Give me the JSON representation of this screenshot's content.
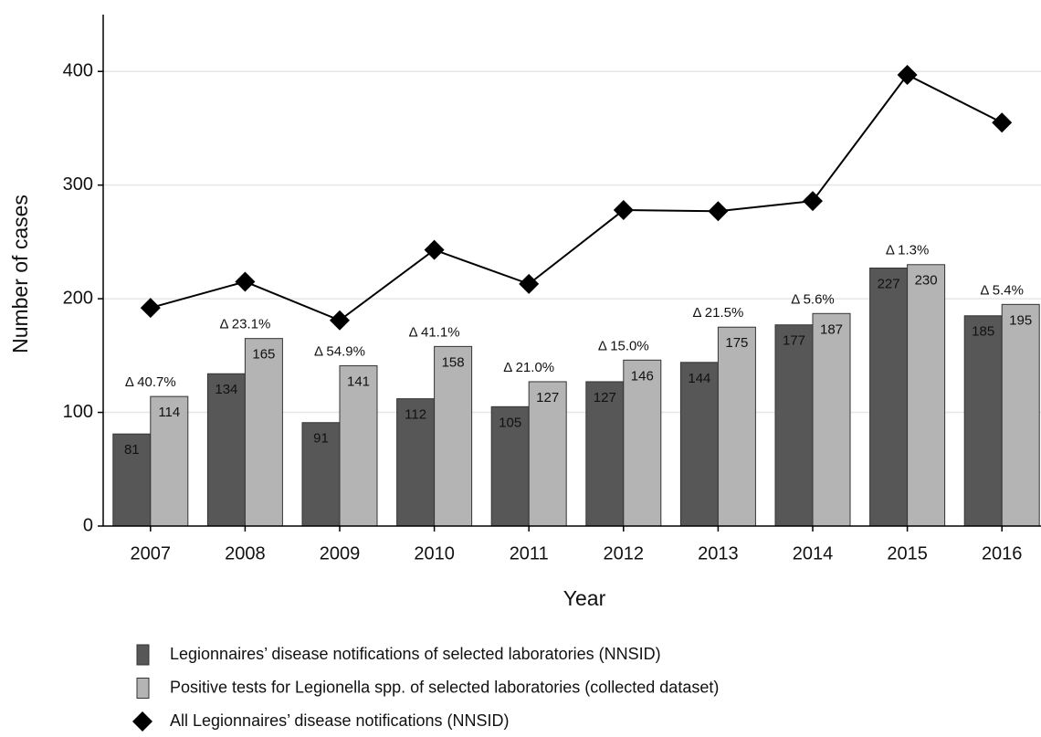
{
  "chart_data": {
    "type": "bar",
    "x_label": "Year",
    "y_label": "Number of cases",
    "categories": [
      "2007",
      "2008",
      "2009",
      "2010",
      "2011",
      "2012",
      "2013",
      "2014",
      "2015",
      "2016"
    ],
    "series": [
      {
        "name": "Legionnaires’ disease notifications of selected laboratories (NNSID)",
        "color": "#575757",
        "values": [
          81,
          134,
          91,
          112,
          105,
          127,
          144,
          177,
          227,
          185
        ]
      },
      {
        "name": "Positive tests for Legionella spp. of selected laboratories (collected dataset)",
        "color": "#b4b4b4",
        "values": [
          114,
          165,
          141,
          158,
          127,
          146,
          175,
          187,
          230,
          195
        ]
      },
      {
        "name": "All Legionnaires’ disease notifications (NNSID)",
        "type": "line",
        "marker": "diamond",
        "color": "#000000",
        "values": [
          192,
          215,
          181,
          243,
          213,
          278,
          277,
          286,
          397,
          355
        ]
      }
    ],
    "annotations": [
      "Δ 40.7%",
      "Δ 23.1%",
      "Δ 54.9%",
      "Δ 41.1%",
      "Δ 21.0%",
      "Δ 15.0%",
      "Δ 21.5%",
      "Δ 5.6%",
      "Δ 1.3%",
      "Δ 5.4%"
    ],
    "ylim": [
      0,
      450
    ],
    "yticks": [
      0,
      100,
      200,
      300,
      400
    ],
    "grid": true,
    "legend": "bottom"
  }
}
